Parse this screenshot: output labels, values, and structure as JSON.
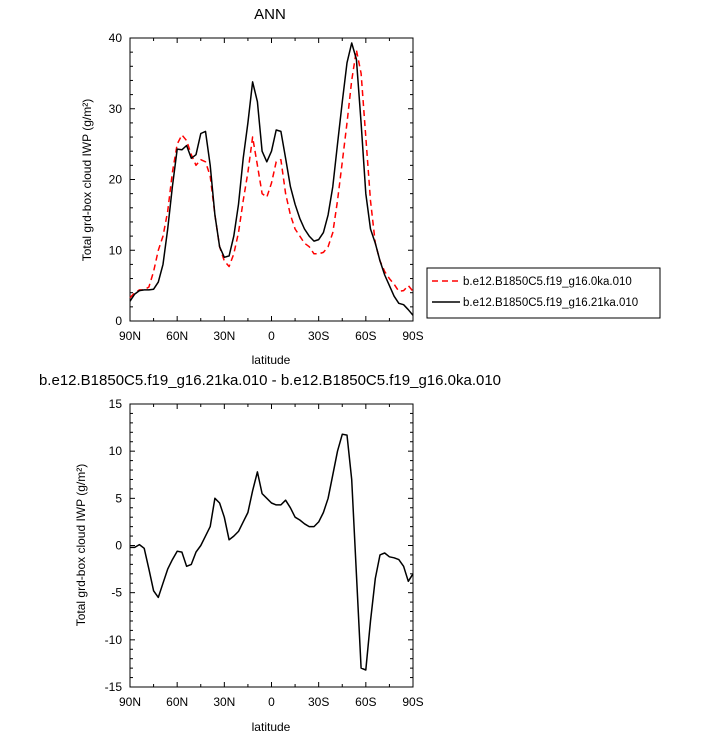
{
  "chart_data": [
    {
      "type": "line",
      "title": "ANN",
      "xlabel": "latitude",
      "ylabel": "Total grd-box cloud IWP (g/m²)",
      "xlim": [
        90,
        -90
      ],
      "ylim": [
        0,
        40
      ],
      "x_ticks": [
        {
          "value": 90,
          "label": "90N"
        },
        {
          "value": 60,
          "label": "60N"
        },
        {
          "value": 30,
          "label": "30N"
        },
        {
          "value": 0,
          "label": "0"
        },
        {
          "value": -30,
          "label": "30S"
        },
        {
          "value": -60,
          "label": "60S"
        },
        {
          "value": -90,
          "label": "90S"
        }
      ],
      "y_ticks": [
        0,
        10,
        20,
        30,
        40
      ],
      "legend": "right",
      "series": [
        {
          "name": "b.e12.B1850C5.f19_g16.0ka.010",
          "color": "#ff0000",
          "dash": "dashed",
          "points": [
            [
              90,
              3.3
            ],
            [
              87,
              4.0
            ],
            [
              84,
              4.4
            ],
            [
              81,
              4.4
            ],
            [
              78,
              4.8
            ],
            [
              75,
              7.0
            ],
            [
              72,
              10.0
            ],
            [
              69,
              12.0
            ],
            [
              66,
              15.5
            ],
            [
              63,
              21.0
            ],
            [
              60,
              25.0
            ],
            [
              57,
              26.3
            ],
            [
              54,
              25.5
            ],
            [
              51,
              23.5
            ],
            [
              48,
              22.0
            ],
            [
              45,
              22.8
            ],
            [
              42,
              22.5
            ],
            [
              39,
              20.5
            ],
            [
              36,
              15.0
            ],
            [
              33,
              10.5
            ],
            [
              30,
              8.5
            ],
            [
              27,
              7.7
            ],
            [
              24,
              9.5
            ],
            [
              21,
              12.5
            ],
            [
              18,
              17.0
            ],
            [
              15,
              21.0
            ],
            [
              12,
              26.0
            ],
            [
              9,
              22.0
            ],
            [
              6,
              18.0
            ],
            [
              3,
              17.5
            ],
            [
              0,
              19.5
            ],
            [
              -3,
              22.5
            ],
            [
              -6,
              22.8
            ],
            [
              -9,
              18.0
            ],
            [
              -12,
              15.0
            ],
            [
              -15,
              13.0
            ],
            [
              -18,
              12.0
            ],
            [
              -21,
              11.0
            ],
            [
              -24,
              10.5
            ],
            [
              -27,
              9.5
            ],
            [
              -30,
              9.5
            ],
            [
              -33,
              9.7
            ],
            [
              -36,
              10.5
            ],
            [
              -39,
              12.5
            ],
            [
              -42,
              17.0
            ],
            [
              -45,
              22.5
            ],
            [
              -48,
              28.0
            ],
            [
              -51,
              34.0
            ],
            [
              -54,
              38.3
            ],
            [
              -57,
              35.0
            ],
            [
              -60,
              26.0
            ],
            [
              -63,
              17.0
            ],
            [
              -66,
              11.0
            ],
            [
              -69,
              8.5
            ],
            [
              -72,
              7.0
            ],
            [
              -75,
              6.0
            ],
            [
              -78,
              5.2
            ],
            [
              -81,
              4.2
            ],
            [
              -84,
              4.3
            ],
            [
              -87,
              5.0
            ],
            [
              -90,
              4.2
            ]
          ]
        },
        {
          "name": "b.e12.B1850C5.f19_g16.21ka.010",
          "color": "#000000",
          "dash": "solid",
          "points": [
            [
              90,
              2.8
            ],
            [
              87,
              3.8
            ],
            [
              84,
              4.3
            ],
            [
              81,
              4.4
            ],
            [
              78,
              4.4
            ],
            [
              75,
              4.5
            ],
            [
              72,
              5.5
            ],
            [
              69,
              8.0
            ],
            [
              66,
              13.0
            ],
            [
              63,
              19.0
            ],
            [
              60,
              24.3
            ],
            [
              57,
              24.2
            ],
            [
              54,
              24.8
            ],
            [
              51,
              23.0
            ],
            [
              48,
              23.5
            ],
            [
              45,
              26.5
            ],
            [
              42,
              26.8
            ],
            [
              39,
              22.0
            ],
            [
              36,
              15.0
            ],
            [
              33,
              10.5
            ],
            [
              30,
              9.0
            ],
            [
              27,
              9.2
            ],
            [
              24,
              12.0
            ],
            [
              21,
              16.5
            ],
            [
              18,
              23.0
            ],
            [
              15,
              28.0
            ],
            [
              12,
              33.8
            ],
            [
              9,
              31.0
            ],
            [
              6,
              24.0
            ],
            [
              3,
              22.5
            ],
            [
              0,
              24.0
            ],
            [
              -3,
              27.0
            ],
            [
              -6,
              26.8
            ],
            [
              -9,
              23.0
            ],
            [
              -12,
              19.0
            ],
            [
              -15,
              16.5
            ],
            [
              -18,
              14.5
            ],
            [
              -21,
              13.0
            ],
            [
              -24,
              12.0
            ],
            [
              -27,
              11.3
            ],
            [
              -30,
              11.5
            ],
            [
              -33,
              12.5
            ],
            [
              -36,
              15.0
            ],
            [
              -39,
              19.0
            ],
            [
              -42,
              25.0
            ],
            [
              -45,
              31.0
            ],
            [
              -48,
              36.5
            ],
            [
              -51,
              39.3
            ],
            [
              -54,
              37.0
            ],
            [
              -57,
              28.0
            ],
            [
              -60,
              18.0
            ],
            [
              -63,
              13.0
            ],
            [
              -66,
              11.0
            ],
            [
              -69,
              8.5
            ],
            [
              -72,
              6.5
            ],
            [
              -75,
              5.0
            ],
            [
              -78,
              3.5
            ],
            [
              -81,
              2.5
            ],
            [
              -84,
              2.3
            ],
            [
              -87,
              1.6
            ],
            [
              -90,
              0.8
            ]
          ]
        }
      ]
    },
    {
      "type": "line",
      "title": "b.e12.B1850C5.f19_g16.21ka.010 - b.e12.B1850C5.f19_g16.0ka.010",
      "xlabel": "latitude",
      "ylabel": "Total grd-box cloud IWP (g/m²)",
      "xlim": [
        90,
        -90
      ],
      "ylim": [
        -15,
        15
      ],
      "x_ticks": [
        {
          "value": 90,
          "label": "90N"
        },
        {
          "value": 60,
          "label": "60N"
        },
        {
          "value": 30,
          "label": "30N"
        },
        {
          "value": 0,
          "label": "0"
        },
        {
          "value": -30,
          "label": "30S"
        },
        {
          "value": -60,
          "label": "60S"
        },
        {
          "value": -90,
          "label": "90S"
        }
      ],
      "y_ticks": [
        -15,
        -10,
        -5,
        0,
        5,
        10,
        15
      ],
      "series": [
        {
          "color": "#000000",
          "dash": "solid",
          "points": [
            [
              90,
              -0.2
            ],
            [
              87,
              -0.2
            ],
            [
              84,
              0.1
            ],
            [
              81,
              -0.3
            ],
            [
              78,
              -2.5
            ],
            [
              75,
              -4.8
            ],
            [
              72,
              -5.5
            ],
            [
              69,
              -4.0
            ],
            [
              66,
              -2.5
            ],
            [
              63,
              -1.5
            ],
            [
              60,
              -0.6
            ],
            [
              57,
              -0.7
            ],
            [
              54,
              -2.2
            ],
            [
              51,
              -2.0
            ],
            [
              48,
              -0.7
            ],
            [
              45,
              0.0
            ],
            [
              42,
              1.0
            ],
            [
              39,
              2.0
            ],
            [
              36,
              5.0
            ],
            [
              33,
              4.5
            ],
            [
              30,
              3.0
            ],
            [
              27,
              0.6
            ],
            [
              24,
              1.0
            ],
            [
              21,
              1.5
            ],
            [
              18,
              2.5
            ],
            [
              15,
              3.5
            ],
            [
              12,
              5.8
            ],
            [
              9,
              7.8
            ],
            [
              6,
              5.5
            ],
            [
              3,
              5.0
            ],
            [
              0,
              4.5
            ],
            [
              -3,
              4.3
            ],
            [
              -6,
              4.3
            ],
            [
              -9,
              4.8
            ],
            [
              -12,
              4.0
            ],
            [
              -15,
              3.0
            ],
            [
              -18,
              2.7
            ],
            [
              -21,
              2.3
            ],
            [
              -24,
              2.0
            ],
            [
              -27,
              2.0
            ],
            [
              -30,
              2.5
            ],
            [
              -33,
              3.5
            ],
            [
              -36,
              5.0
            ],
            [
              -39,
              7.5
            ],
            [
              -42,
              10.0
            ],
            [
              -45,
              11.8
            ],
            [
              -48,
              11.7
            ],
            [
              -51,
              7.0
            ],
            [
              -54,
              -3.0
            ],
            [
              -57,
              -13.0
            ],
            [
              -60,
              -13.2
            ],
            [
              -63,
              -8.0
            ],
            [
              -66,
              -3.5
            ],
            [
              -69,
              -1.0
            ],
            [
              -72,
              -0.8
            ],
            [
              -75,
              -1.2
            ],
            [
              -78,
              -1.3
            ],
            [
              -81,
              -1.5
            ],
            [
              -84,
              -2.2
            ],
            [
              -87,
              -3.8
            ],
            [
              -90,
              -3.0
            ]
          ]
        }
      ]
    }
  ]
}
